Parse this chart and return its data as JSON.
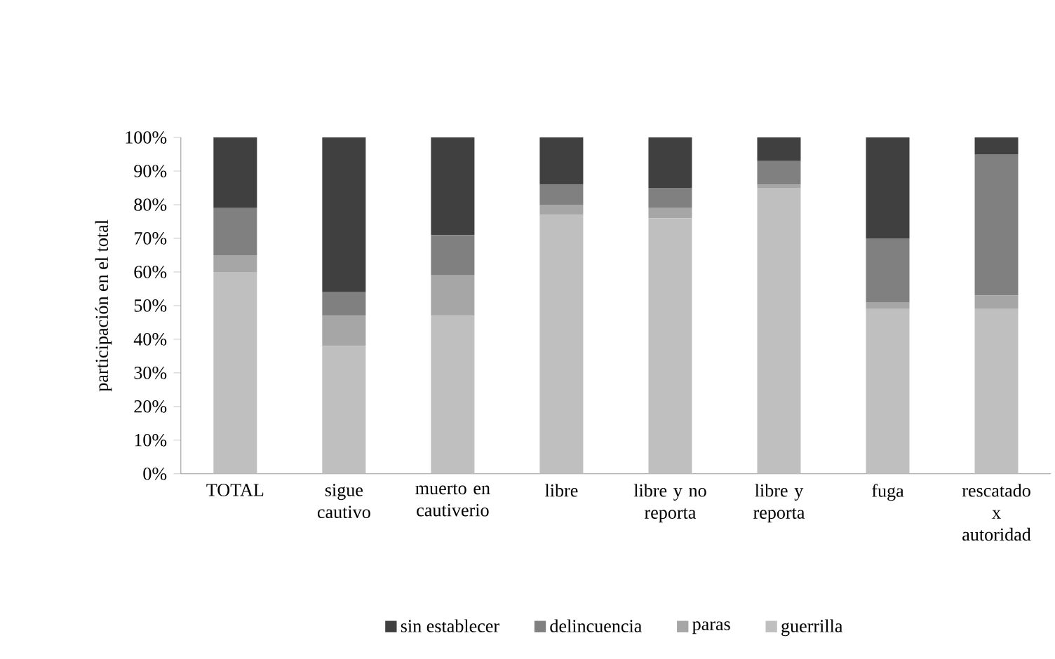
{
  "chart_data": {
    "type": "bar",
    "stacked": true,
    "ylabel": "participación  en el total",
    "categories": [
      "TOTAL",
      "sigue cautivo",
      "muerto en cautiverio",
      "libre",
      "libre y no reporta",
      "libre y reporta",
      "fuga",
      "rescatado x autoridad"
    ],
    "series": [
      {
        "name": "guerrilla",
        "color": "#bfbfbf",
        "values": [
          60,
          38,
          47,
          77,
          76,
          85,
          49,
          49
        ]
      },
      {
        "name": "paras",
        "color": "#a6a6a6",
        "values": [
          5,
          9,
          12,
          3,
          3,
          1,
          2,
          4
        ]
      },
      {
        "name": "delincuencia",
        "color": "#808080",
        "values": [
          14,
          7,
          12,
          6,
          6,
          7,
          19,
          42
        ]
      },
      {
        "name": "sin establecer",
        "color": "#404040",
        "values": [
          21,
          46,
          29,
          14,
          15,
          7,
          30,
          5
        ]
      }
    ],
    "ylim": [
      0,
      100
    ],
    "yticks": [
      {
        "value": 0,
        "label": "0%"
      },
      {
        "value": 10,
        "label": "10%"
      },
      {
        "value": 20,
        "label": "20%"
      },
      {
        "value": 30,
        "label": "30%"
      },
      {
        "value": 40,
        "label": "40%"
      },
      {
        "value": 50,
        "label": "50%"
      },
      {
        "value": 60,
        "label": "60%"
      },
      {
        "value": 70,
        "label": "70%"
      },
      {
        "value": 80,
        "label": "80%"
      },
      {
        "value": 90,
        "label": "90%"
      },
      {
        "value": 100,
        "label": "100%"
      }
    ],
    "grid": false,
    "legend": "bottom"
  }
}
